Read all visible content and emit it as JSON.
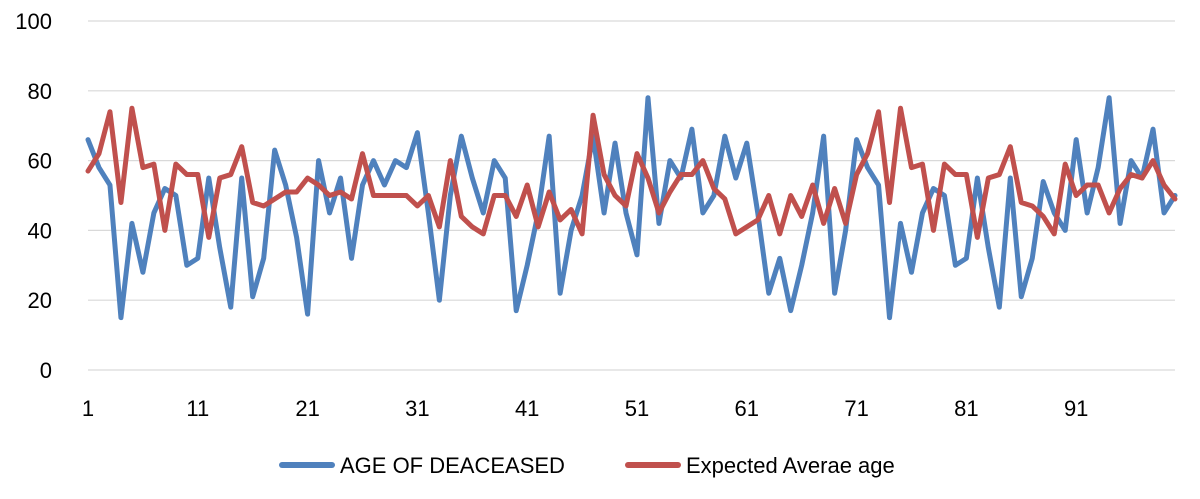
{
  "chart_data": {
    "type": "line",
    "title": "",
    "xlabel": "",
    "ylabel": "",
    "ylim": [
      0,
      100
    ],
    "yticks": [
      0,
      20,
      40,
      60,
      80,
      100
    ],
    "xticks": [
      1,
      11,
      21,
      31,
      41,
      51,
      61,
      71,
      81,
      91
    ],
    "x": [
      1,
      2,
      3,
      4,
      5,
      6,
      7,
      8,
      9,
      10,
      11,
      12,
      13,
      14,
      15,
      16,
      17,
      18,
      19,
      20,
      21,
      22,
      23,
      24,
      25,
      26,
      27,
      28,
      29,
      30,
      31,
      32,
      33,
      34,
      35,
      36,
      37,
      38,
      39,
      40,
      41,
      42,
      43,
      44,
      45,
      46,
      47,
      48,
      49,
      50,
      51,
      52,
      53,
      54,
      55,
      56,
      57,
      58,
      59,
      60,
      61,
      62,
      63,
      64,
      65,
      66,
      67,
      68,
      69,
      70,
      71,
      72,
      73,
      74,
      75,
      76,
      77,
      78,
      79,
      80,
      81,
      82,
      83,
      84,
      85,
      86,
      87,
      88,
      89,
      90,
      91,
      92,
      93,
      94,
      95,
      96,
      97,
      98,
      99,
      100
    ],
    "grid": "horizontal",
    "legend_position": "bottom",
    "series": [
      {
        "name": "AGE OF DEACEASED",
        "color": "#4f81bd",
        "values": [
          66,
          58,
          53,
          15,
          42,
          28,
          45,
          52,
          50,
          30,
          32,
          55,
          35,
          18,
          55,
          21,
          32,
          63,
          53,
          38,
          16,
          60,
          45,
          55,
          32,
          53,
          60,
          53,
          60,
          58,
          68,
          45,
          20,
          50,
          67,
          55,
          45,
          60,
          55,
          17,
          30,
          45,
          67,
          22,
          40,
          50,
          67,
          45,
          65,
          45,
          33,
          78,
          42,
          60,
          55,
          69,
          45,
          50,
          67,
          55,
          65,
          45,
          22,
          32,
          17,
          30,
          45,
          67,
          22,
          40,
          66,
          58,
          53,
          15,
          42,
          28,
          45,
          52,
          50,
          30,
          32,
          55,
          35,
          18,
          55,
          21,
          32,
          54,
          45,
          40,
          66,
          45,
          58,
          78,
          42,
          60,
          55,
          69,
          45,
          50
        ]
      },
      {
        "name": "Expected Averae age",
        "color": "#c0504d",
        "values": [
          57,
          62,
          74,
          48,
          75,
          58,
          59,
          40,
          59,
          56,
          56,
          38,
          55,
          56,
          64,
          48,
          47,
          49,
          51,
          51,
          55,
          53,
          50,
          51,
          49,
          62,
          50,
          50,
          50,
          50,
          47,
          50,
          41,
          60,
          44,
          41,
          39,
          50,
          50,
          44,
          53,
          41,
          51,
          43,
          46,
          39,
          73,
          56,
          50,
          47,
          62,
          55,
          45,
          51,
          56,
          56,
          60,
          52,
          49,
          39,
          41,
          43,
          50,
          39,
          50,
          44,
          53,
          42,
          52,
          42,
          56,
          62,
          74,
          48,
          75,
          58,
          59,
          40,
          59,
          56,
          56,
          38,
          55,
          56,
          64,
          48,
          47,
          44,
          39,
          59,
          50,
          53,
          53,
          45,
          52,
          56,
          55,
          60,
          53,
          49
        ]
      }
    ]
  }
}
